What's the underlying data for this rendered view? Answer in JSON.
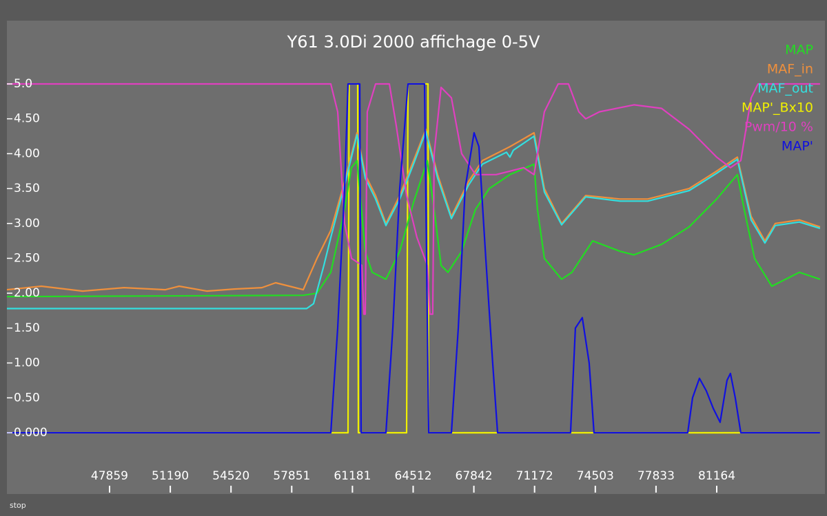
{
  "chart_data": {
    "type": "line",
    "title": "Y61 3.0Di 2000 affichage 0-5V",
    "xlim": [
      42227,
      87099
    ],
    "ylim": [
      -0.878,
      5.907
    ],
    "xticks": [
      47859,
      51190,
      54520,
      57851,
      61181,
      64512,
      67842,
      71172,
      74503,
      77833,
      81164
    ],
    "yticks": [
      {
        "value": 5,
        "label": "5.0"
      },
      {
        "value": 4.5,
        "label": "4.50"
      },
      {
        "value": 4,
        "label": "4.00"
      },
      {
        "value": 3.5,
        "label": "3.50"
      },
      {
        "value": 3,
        "label": "3.00"
      },
      {
        "value": 2.5,
        "label": "2.50"
      },
      {
        "value": 2,
        "label": "2.00"
      },
      {
        "value": 1.5,
        "label": "1.50"
      },
      {
        "value": 1,
        "label": "1.00"
      },
      {
        "value": 0.5,
        "label": "0.50"
      },
      {
        "value": 0,
        "label": "0.000"
      }
    ],
    "legend": "top-right",
    "series": [
      {
        "name": "MAP'_Bx10",
        "color": "#f0f000",
        "x": [
          42227,
          60938,
          61000,
          61467,
          61505,
          64151,
          64227,
          65323,
          65361,
          86831
        ],
        "values": [
          0,
          0,
          5,
          5,
          0,
          0,
          5,
          5,
          0,
          0
        ]
      },
      {
        "name": "MAP",
        "color": "#22dd22",
        "x": [
          42227,
          58481,
          59237,
          59993,
          60749,
          61127,
          61429,
          61883,
          62261,
          63017,
          63773,
          64529,
          65285,
          65663,
          66041,
          66419,
          67175,
          67931,
          68687,
          69821,
          71144,
          71333,
          71711,
          72656,
          73223,
          74357,
          75869,
          76625,
          78137,
          79649,
          81161,
          82295,
          82673,
          83240,
          84185,
          85697,
          86831
        ],
        "values": [
          1.95,
          1.97,
          2.0,
          2.3,
          3.2,
          3.8,
          3.9,
          2.6,
          2.3,
          2.2,
          2.6,
          3.3,
          3.9,
          3.2,
          2.4,
          2.3,
          2.6,
          3.2,
          3.5,
          3.7,
          3.85,
          3.2,
          2.5,
          2.2,
          2.3,
          2.75,
          2.6,
          2.55,
          2.7,
          2.95,
          3.35,
          3.7,
          3.2,
          2.5,
          2.1,
          2.3,
          2.2
        ]
      },
      {
        "name": "MAF_in",
        "color": "#f0903c",
        "x": [
          42227,
          44117,
          46385,
          48653,
          50921,
          51677,
          53189,
          54701,
          56213,
          56969,
          57725,
          58481,
          59237,
          59993,
          60749,
          61429,
          61883,
          62450,
          63017,
          63773,
          64529,
          65209,
          65852,
          66608,
          67553,
          68309,
          69821,
          71144,
          71711,
          72656,
          73979,
          75869,
          77381,
          79649,
          81161,
          82295,
          83051,
          83807,
          84374,
          85697,
          86831
        ],
        "values": [
          2.05,
          2.1,
          2.03,
          2.08,
          2.05,
          2.1,
          2.03,
          2.06,
          2.08,
          2.15,
          2.1,
          2.05,
          2.5,
          2.9,
          3.6,
          4.3,
          3.7,
          3.4,
          3.0,
          3.4,
          3.9,
          4.35,
          3.7,
          3.1,
          3.6,
          3.9,
          4.1,
          4.3,
          3.5,
          3.0,
          3.4,
          3.35,
          3.35,
          3.5,
          3.75,
          3.95,
          3.1,
          2.75,
          3.0,
          3.05,
          2.95
        ]
      },
      {
        "name": "MAF_out",
        "color": "#33e0e0",
        "x": [
          42227,
          58670,
          59048,
          59615,
          59993,
          60749,
          61429,
          61883,
          62450,
          63017,
          63773,
          64529,
          65209,
          65852,
          66608,
          67553,
          68309,
          69632,
          69821,
          70010,
          71144,
          71711,
          72656,
          73979,
          75869,
          77381,
          79649,
          81161,
          82295,
          83051,
          83807,
          84374,
          85697,
          86831
        ],
        "values": [
          1.78,
          1.78,
          1.85,
          2.4,
          2.8,
          3.55,
          4.27,
          3.65,
          3.35,
          2.97,
          3.35,
          3.85,
          4.32,
          3.65,
          3.07,
          3.55,
          3.85,
          4.02,
          3.95,
          4.05,
          4.25,
          3.45,
          2.98,
          3.38,
          3.32,
          3.32,
          3.47,
          3.72,
          3.92,
          3.05,
          2.72,
          2.97,
          3.02,
          2.93
        ]
      },
      {
        "name": "Pwm/10 %",
        "color": "#e040c0",
        "x": [
          42227,
          59993,
          60371,
          60749,
          61127,
          61694,
          61807,
          61883,
          61996,
          62450,
          63206,
          63584,
          64151,
          64718,
          65285,
          65436,
          65587,
          65663,
          66041,
          66608,
          67175,
          67931,
          69065,
          70577,
          71144,
          71711,
          72467,
          73034,
          73601,
          73979,
          74735,
          76625,
          78137,
          79649,
          81161,
          81917,
          82484,
          83051,
          83429,
          86831
        ],
        "values": [
          5.0,
          5.0,
          4.6,
          3.0,
          2.5,
          2.4,
          1.7,
          1.7,
          4.6,
          5.0,
          5.0,
          4.4,
          3.4,
          2.8,
          2.4,
          1.7,
          1.7,
          4.0,
          4.95,
          4.8,
          4.0,
          3.7,
          3.7,
          3.8,
          3.7,
          4.6,
          5.0,
          5.0,
          4.6,
          4.5,
          4.6,
          4.7,
          4.65,
          4.35,
          3.95,
          3.8,
          3.9,
          4.8,
          5.0,
          5.0
        ]
      },
      {
        "name": "MAP'",
        "color": "#1010e0",
        "x": [
          42227,
          59993,
          60371,
          60749,
          60938,
          61581,
          61656,
          63017,
          63395,
          63773,
          64227,
          65134,
          65361,
          66608,
          66986,
          67364,
          67855,
          68120,
          68498,
          68876,
          69141,
          73147,
          73412,
          73790,
          74168,
          74433,
          79573,
          79838,
          80216,
          80594,
          80972,
          81350,
          81728,
          81917,
          82182,
          82484,
          86831
        ],
        "values": [
          0,
          0,
          1.5,
          3.5,
          5.0,
          5.0,
          0,
          0,
          1.5,
          3.5,
          5.0,
          5.0,
          0,
          0,
          1.5,
          3.5,
          4.3,
          4.1,
          2.5,
          1.0,
          0,
          0,
          1.5,
          1.65,
          1.0,
          0,
          0,
          0.5,
          0.78,
          0.6,
          0.35,
          0.15,
          0.75,
          0.85,
          0.5,
          0,
          0
        ]
      }
    ]
  },
  "status_label": "stop"
}
